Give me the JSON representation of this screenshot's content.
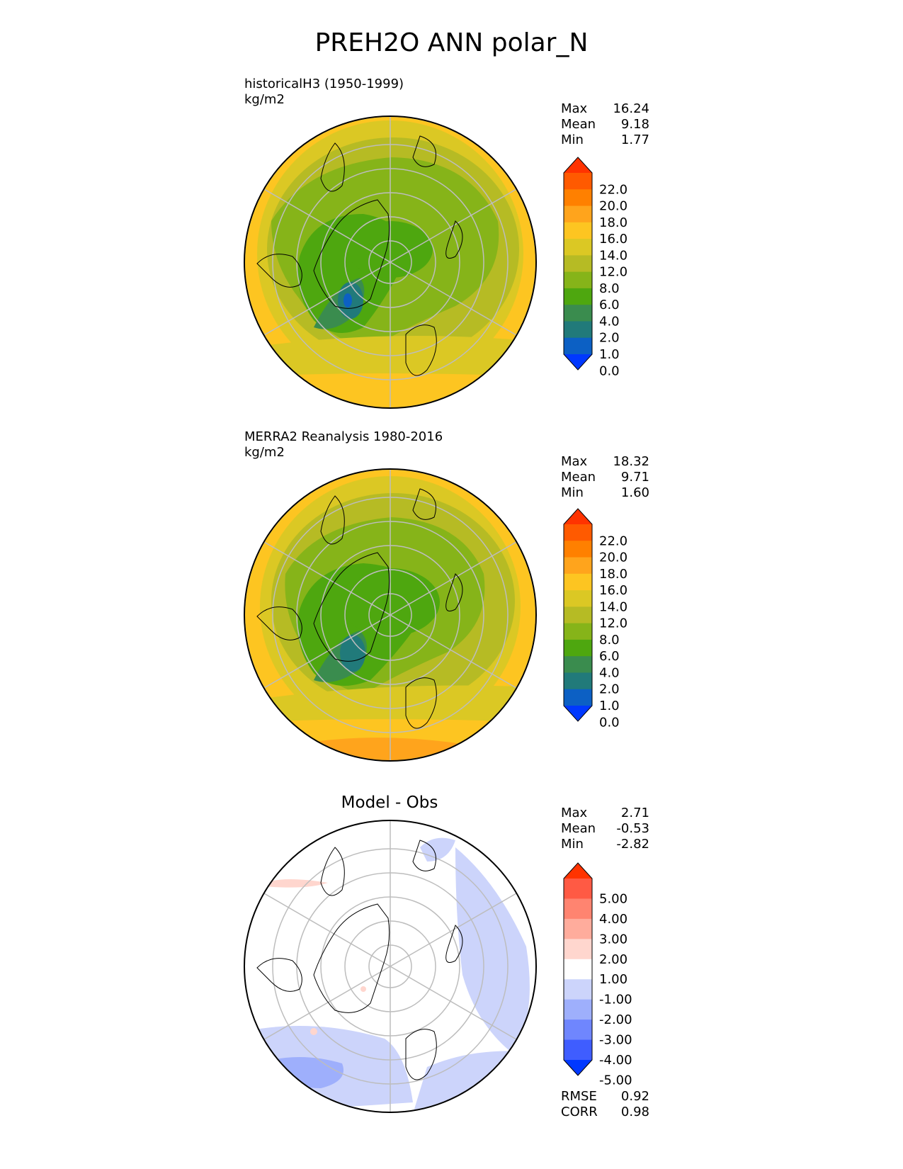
{
  "title": "PREH2O ANN polar_N",
  "panels": [
    {
      "label_line1": "historicalH3 (1950-1999)",
      "label_line2": "kg/m2",
      "stats": [
        {
          "name": "Max",
          "value": "16.24"
        },
        {
          "name": "Mean",
          "value": "9.18"
        },
        {
          "name": "Min",
          "value": "1.77"
        }
      ]
    },
    {
      "label_line1": "MERRA2 Reanalysis 1980-2016",
      "label_line2": "kg/m2",
      "stats": [
        {
          "name": "Max",
          "value": "18.32"
        },
        {
          "name": "Mean",
          "value": "9.71"
        },
        {
          "name": "Min",
          "value": "1.60"
        }
      ]
    },
    {
      "center_title": "Model - Obs",
      "stats": [
        {
          "name": "Max",
          "value": "2.71"
        },
        {
          "name": "Mean",
          "value": "-0.53"
        },
        {
          "name": "Min",
          "value": "-2.82"
        }
      ],
      "metrics": [
        {
          "name": "RMSE",
          "value": "0.92"
        },
        {
          "name": "CORR",
          "value": "0.98"
        }
      ]
    }
  ],
  "colorbars": {
    "field": {
      "levels": [
        "22.0",
        "20.0",
        "18.0",
        "16.0",
        "14.0",
        "12.0",
        "8.0",
        "6.0",
        "4.0",
        "2.0",
        "1.0",
        "0.0"
      ],
      "colors": [
        "#ff3300",
        "#ff5a00",
        "#ff8000",
        "#ffa41c",
        "#fdc521",
        "#dbc824",
        "#b6bb24",
        "#86b419",
        "#4ea70f",
        "#3a8c4e",
        "#217a7a",
        "#0c60c4",
        "#0038ff"
      ]
    },
    "diff": {
      "levels": [
        "5.00",
        "4.00",
        "3.00",
        "2.00",
        "1.00",
        "-1.00",
        "-2.00",
        "-3.00",
        "-4.00",
        "-5.00"
      ],
      "colors": [
        "#ff3300",
        "#ff5a44",
        "#ff8470",
        "#ffac9c",
        "#ffd6ce",
        "#ffffff",
        "#ccd4fb",
        "#9eaffc",
        "#6f86fe",
        "#3f5dff",
        "#0038ff"
      ]
    }
  }
}
